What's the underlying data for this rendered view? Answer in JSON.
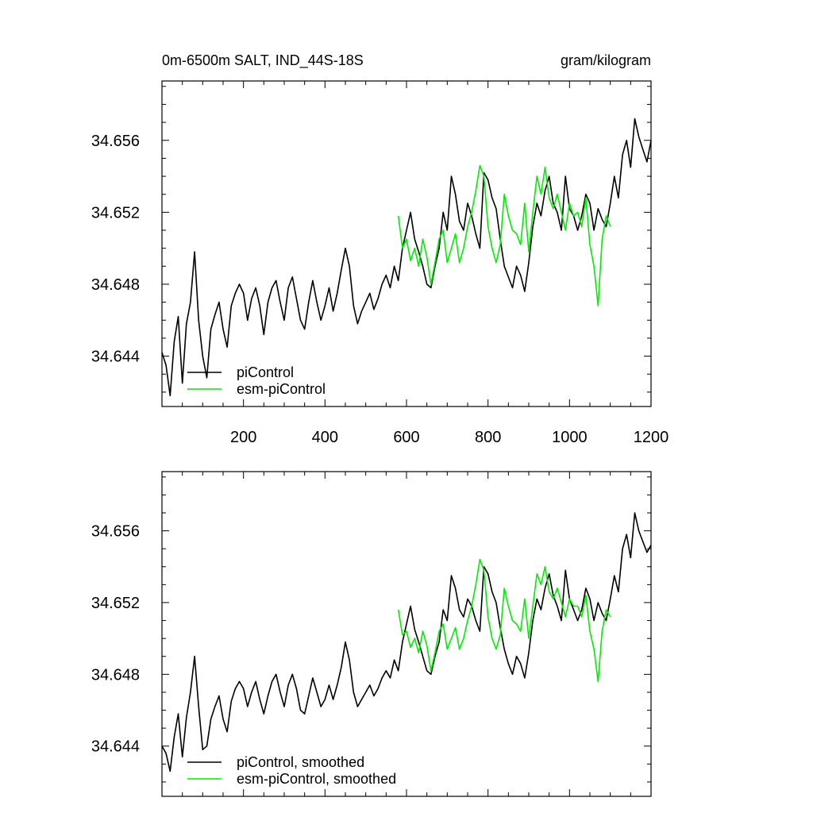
{
  "figure": {
    "title_left": "0m-6500m SALT, IND_44S-18S",
    "title_right": "gram/kilogram"
  },
  "colors": {
    "picontrol": "#000000",
    "esm": "#00ee00",
    "axis": "#000000"
  },
  "chart_data": [
    {
      "type": "line",
      "name": "raw",
      "xlim": [
        0,
        1200
      ],
      "ylim": [
        34.6412,
        34.6593
      ],
      "x_ticks": [
        200,
        400,
        600,
        800,
        1000,
        1200
      ],
      "x_tick_labels": [
        "200",
        "400",
        "600",
        "800",
        "1000",
        "1200"
      ],
      "y_ticks": [
        34.644,
        34.648,
        34.652,
        34.656
      ],
      "y_tick_labels": [
        "34.644",
        "34.648",
        "34.652",
        "34.656"
      ],
      "legend": [
        "piControl",
        "esm-piControl"
      ],
      "legend_position": "bottom-left",
      "series": [
        {
          "name": "piControl",
          "x": [
            0,
            10,
            20,
            30,
            40,
            50,
            60,
            70,
            80,
            90,
            100,
            110,
            120,
            130,
            140,
            150,
            160,
            170,
            180,
            190,
            200,
            210,
            220,
            230,
            240,
            250,
            260,
            270,
            280,
            290,
            300,
            310,
            320,
            330,
            340,
            350,
            360,
            370,
            380,
            390,
            400,
            410,
            420,
            430,
            440,
            450,
            460,
            470,
            480,
            490,
            500,
            510,
            520,
            530,
            540,
            550,
            560,
            570,
            580,
            590,
            600,
            610,
            620,
            630,
            640,
            650,
            660,
            670,
            680,
            690,
            700,
            710,
            720,
            730,
            740,
            750,
            760,
            770,
            780,
            790,
            800,
            810,
            820,
            830,
            840,
            850,
            860,
            870,
            880,
            890,
            900,
            910,
            920,
            930,
            940,
            950,
            960,
            970,
            980,
            990,
            1000,
            1010,
            1020,
            1030,
            1040,
            1050,
            1060,
            1070,
            1080,
            1090,
            1100,
            1110,
            1120,
            1130,
            1140,
            1150,
            1160,
            1170,
            1180,
            1190,
            1200
          ],
          "y": [
            34.6442,
            34.6435,
            34.6418,
            34.6448,
            34.6462,
            34.6425,
            34.6458,
            34.647,
            34.6498,
            34.646,
            34.644,
            34.6428,
            34.6455,
            34.6463,
            34.647,
            34.6455,
            34.6445,
            34.6468,
            34.6475,
            34.648,
            34.6475,
            34.646,
            34.6472,
            34.6478,
            34.6468,
            34.6452,
            34.647,
            34.6478,
            34.6482,
            34.647,
            34.646,
            34.6478,
            34.6484,
            34.6472,
            34.646,
            34.6455,
            34.647,
            34.6482,
            34.647,
            34.646,
            34.6468,
            34.6478,
            34.6465,
            34.6475,
            34.6488,
            34.65,
            34.649,
            34.6468,
            34.6458,
            34.6465,
            34.647,
            34.6475,
            34.6466,
            34.6472,
            34.648,
            34.6485,
            34.6478,
            34.649,
            34.6482,
            34.65,
            34.651,
            34.652,
            34.6505,
            34.6498,
            34.649,
            34.648,
            34.6478,
            34.649,
            34.65,
            34.652,
            34.651,
            34.654,
            34.653,
            34.6515,
            34.651,
            34.6525,
            34.6518,
            34.6508,
            34.65,
            34.6542,
            34.6538,
            34.6528,
            34.6522,
            34.6505,
            34.649,
            34.6484,
            34.6478,
            34.649,
            34.6485,
            34.6476,
            34.6492,
            34.6512,
            34.6525,
            34.6518,
            34.6532,
            34.654,
            34.6525,
            34.652,
            34.651,
            34.654,
            34.6522,
            34.6518,
            34.651,
            34.6518,
            34.653,
            34.6525,
            34.651,
            34.6522,
            34.6516,
            34.6512,
            34.6525,
            34.654,
            34.6528,
            34.6552,
            34.656,
            34.6545,
            34.6572,
            34.6562,
            34.6555,
            34.6548,
            34.656
          ]
        },
        {
          "name": "esm-piControl",
          "x": [
            580,
            590,
            600,
            610,
            620,
            630,
            640,
            650,
            660,
            670,
            680,
            690,
            700,
            710,
            720,
            730,
            740,
            750,
            760,
            770,
            780,
            790,
            800,
            810,
            820,
            830,
            840,
            850,
            860,
            870,
            880,
            890,
            900,
            910,
            920,
            930,
            940,
            950,
            960,
            970,
            980,
            990,
            1000,
            1010,
            1020,
            1030,
            1040,
            1050,
            1060,
            1070,
            1080,
            1090,
            1100
          ],
          "y": [
            34.6518,
            34.65,
            34.6505,
            34.6493,
            34.65,
            34.649,
            34.6505,
            34.6495,
            34.648,
            34.6492,
            34.6505,
            34.651,
            34.6492,
            34.65,
            34.6508,
            34.6492,
            34.65,
            34.6512,
            34.652,
            34.6532,
            34.6546,
            34.654,
            34.6512,
            34.65,
            34.6492,
            34.6502,
            34.653,
            34.6518,
            34.651,
            34.6508,
            34.6502,
            34.6525,
            34.6498,
            34.652,
            34.654,
            34.653,
            34.6545,
            34.6528,
            34.6522,
            34.653,
            34.652,
            34.651,
            34.6525,
            34.6518,
            34.652,
            34.6512,
            34.6528,
            34.6502,
            34.649,
            34.6468,
            34.6505,
            34.6518,
            34.6512
          ]
        }
      ]
    },
    {
      "type": "line",
      "name": "smoothed",
      "xlim": [
        0,
        1200
      ],
      "ylim": [
        34.6412,
        34.6593
      ],
      "x_ticks": [
        200,
        400,
        600,
        800,
        1000,
        1200
      ],
      "y_ticks": [
        34.644,
        34.648,
        34.652,
        34.656
      ],
      "y_tick_labels": [
        "34.644",
        "34.648",
        "34.652",
        "34.656"
      ],
      "legend": [
        "piControl, smoothed",
        "esm-piControl, smoothed"
      ],
      "legend_position": "bottom-left",
      "series": [
        {
          "name": "piControl, smoothed",
          "x": [
            0,
            10,
            20,
            30,
            40,
            50,
            60,
            70,
            80,
            90,
            100,
            110,
            120,
            130,
            140,
            150,
            160,
            170,
            180,
            190,
            200,
            210,
            220,
            230,
            240,
            250,
            260,
            270,
            280,
            290,
            300,
            310,
            320,
            330,
            340,
            350,
            360,
            370,
            380,
            390,
            400,
            410,
            420,
            430,
            440,
            450,
            460,
            470,
            480,
            490,
            500,
            510,
            520,
            530,
            540,
            550,
            560,
            570,
            580,
            590,
            600,
            610,
            620,
            630,
            640,
            650,
            660,
            670,
            680,
            690,
            700,
            710,
            720,
            730,
            740,
            750,
            760,
            770,
            780,
            790,
            800,
            810,
            820,
            830,
            840,
            850,
            860,
            870,
            880,
            890,
            900,
            910,
            920,
            930,
            940,
            950,
            960,
            970,
            980,
            990,
            1000,
            1010,
            1020,
            1030,
            1040,
            1050,
            1060,
            1070,
            1080,
            1090,
            1100,
            1110,
            1120,
            1130,
            1140,
            1150,
            1160,
            1170,
            1180,
            1190,
            1200
          ],
          "y": [
            34.644,
            34.6436,
            34.6426,
            34.6445,
            34.6458,
            34.6434,
            34.6456,
            34.647,
            34.649,
            34.6462,
            34.6438,
            34.644,
            34.6455,
            34.6462,
            34.6468,
            34.6455,
            34.6448,
            34.6465,
            34.6472,
            34.6476,
            34.6472,
            34.6462,
            34.647,
            34.6476,
            34.6466,
            34.6458,
            34.6468,
            34.6476,
            34.648,
            34.647,
            34.6462,
            34.6474,
            34.648,
            34.6472,
            34.646,
            34.6458,
            34.6468,
            34.6478,
            34.647,
            34.6462,
            34.6466,
            34.6474,
            34.6466,
            34.6474,
            34.6484,
            34.6498,
            34.6488,
            34.647,
            34.6462,
            34.6466,
            34.647,
            34.6474,
            34.6468,
            34.6472,
            34.6478,
            34.6482,
            34.6478,
            34.6488,
            34.6482,
            34.6498,
            34.6508,
            34.6518,
            34.6505,
            34.6498,
            34.649,
            34.6482,
            34.648,
            34.649,
            34.6498,
            34.6516,
            34.651,
            34.6535,
            34.6528,
            34.6516,
            34.6512,
            34.6522,
            34.6518,
            34.651,
            34.6504,
            34.654,
            34.6536,
            34.6526,
            34.652,
            34.6506,
            34.6494,
            34.6486,
            34.648,
            34.649,
            34.6486,
            34.6478,
            34.6492,
            34.651,
            34.6522,
            34.6516,
            34.6528,
            34.6536,
            34.6524,
            34.6518,
            34.651,
            34.6538,
            34.6522,
            34.6516,
            34.651,
            34.6516,
            34.6528,
            34.6522,
            34.651,
            34.652,
            34.6514,
            34.651,
            34.6522,
            34.6535,
            34.6526,
            34.655,
            34.6558,
            34.6545,
            34.657,
            34.656,
            34.6554,
            34.6548,
            34.6552
          ]
        },
        {
          "name": "esm-piControl, smoothed",
          "x": [
            580,
            590,
            600,
            610,
            620,
            630,
            640,
            650,
            660,
            670,
            680,
            690,
            700,
            710,
            720,
            730,
            740,
            750,
            760,
            770,
            780,
            790,
            800,
            810,
            820,
            830,
            840,
            850,
            860,
            870,
            880,
            890,
            900,
            910,
            920,
            930,
            940,
            950,
            960,
            970,
            980,
            990,
            1000,
            1010,
            1020,
            1030,
            1040,
            1050,
            1060,
            1070,
            1080,
            1090,
            1100
          ],
          "y": [
            34.6516,
            34.6502,
            34.6504,
            34.6495,
            34.65,
            34.6492,
            34.6504,
            34.6496,
            34.6482,
            34.6492,
            34.6504,
            34.6508,
            34.6494,
            34.65,
            34.6506,
            34.6494,
            34.65,
            34.651,
            34.6518,
            34.653,
            34.6544,
            34.6538,
            34.6512,
            34.65,
            34.6494,
            34.6502,
            34.6528,
            34.6518,
            34.651,
            34.6508,
            34.6504,
            34.6522,
            34.65,
            34.6518,
            34.6536,
            34.653,
            34.654,
            34.6526,
            34.6522,
            34.6528,
            34.652,
            34.6512,
            34.6522,
            34.6518,
            34.6518,
            34.6512,
            34.6524,
            34.6504,
            34.6494,
            34.6476,
            34.6504,
            34.6516,
            34.6512
          ]
        }
      ]
    }
  ]
}
